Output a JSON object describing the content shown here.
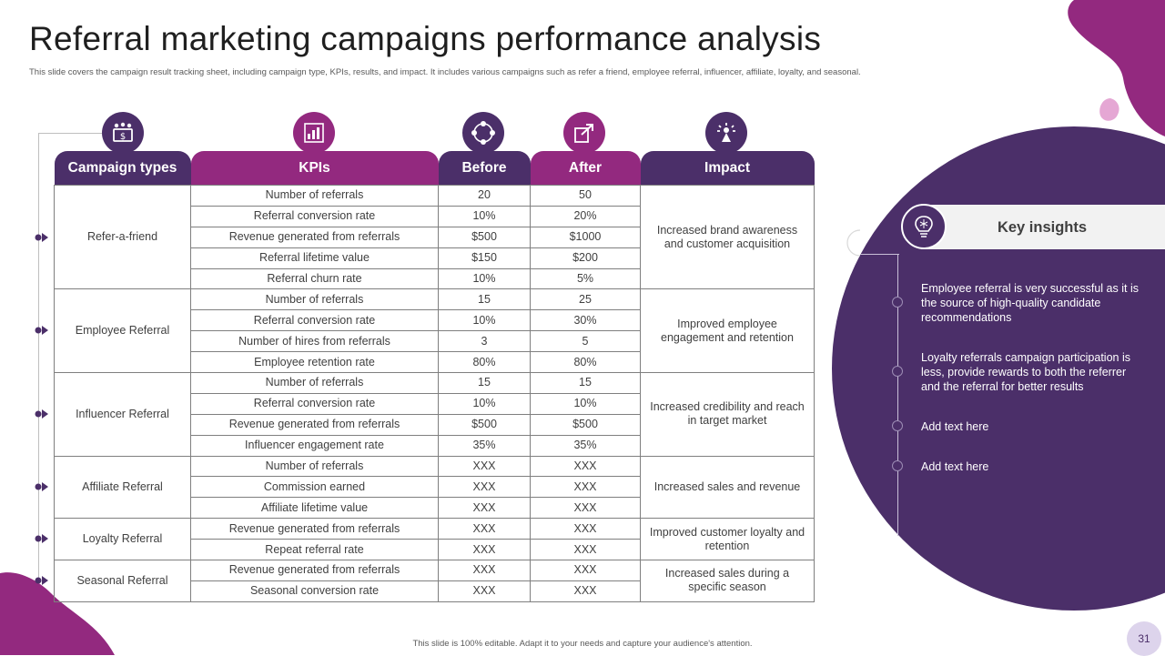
{
  "title": "Referral marketing campaigns performance analysis",
  "subtitle": "This slide covers the campaign result tracking sheet, including campaign type, KPIs,  results, and impact.  It includes various campaigns such as refer a friend, employee referral, influencer, affiliate, loyalty, and seasonal.",
  "table": {
    "headers": {
      "campaign_types": "Campaign types",
      "kpis": "KPIs",
      "before": "Before",
      "after": "After",
      "impact": "Impact"
    },
    "groups": [
      {
        "campaign": "Refer-a-friend",
        "impact": "Increased brand awareness and customer acquisition",
        "rows": [
          {
            "kpi": "Number of referrals",
            "before": "20",
            "after": "50"
          },
          {
            "kpi": "Referral conversion rate",
            "before": "10%",
            "after": "20%"
          },
          {
            "kpi": "Revenue generated from referrals",
            "before": "$500",
            "after": "$1000"
          },
          {
            "kpi": "Referral lifetime value",
            "before": "$150",
            "after": "$200"
          },
          {
            "kpi": "Referral churn rate",
            "before": "10%",
            "after": "5%"
          }
        ]
      },
      {
        "campaign": "Employee Referral",
        "impact": "Improved employee engagement and retention",
        "rows": [
          {
            "kpi": "Number of referrals",
            "before": "15",
            "after": "25"
          },
          {
            "kpi": "Referral conversion rate",
            "before": "10%",
            "after": "30%"
          },
          {
            "kpi": "Number of hires from referrals",
            "before": "3",
            "after": "5"
          },
          {
            "kpi": "Employee retention rate",
            "before": "80%",
            "after": "80%"
          }
        ]
      },
      {
        "campaign": "Influencer Referral",
        "impact": "Increased credibility and reach in target market",
        "rows": [
          {
            "kpi": "Number of referrals",
            "before": "15",
            "after": "15"
          },
          {
            "kpi": "Referral conversion rate",
            "before": "10%",
            "after": "10%"
          },
          {
            "kpi": "Revenue generated from referrals",
            "before": "$500",
            "after": "$500"
          },
          {
            "kpi": "Influencer engagement rate",
            "before": "35%",
            "after": "35%"
          }
        ]
      },
      {
        "campaign": "Affiliate Referral",
        "impact": "Increased sales and revenue",
        "rows": [
          {
            "kpi": "Number of referrals",
            "before": "XXX",
            "after": "XXX"
          },
          {
            "kpi": "Commission earned",
            "before": "XXX",
            "after": "XXX"
          },
          {
            "kpi": "Affiliate lifetime value",
            "before": "XXX",
            "after": "XXX"
          }
        ]
      },
      {
        "campaign": "Loyalty Referral",
        "impact": "Improved customer loyalty and retention",
        "rows": [
          {
            "kpi": "Revenue generated from referrals",
            "before": "XXX",
            "after": "XXX"
          },
          {
            "kpi": "Repeat referral rate",
            "before": "XXX",
            "after": "XXX"
          }
        ]
      },
      {
        "campaign": "Seasonal Referral",
        "impact": "Increased sales during a specific season",
        "rows": [
          {
            "kpi": "Revenue generated from referrals",
            "before": "XXX",
            "after": "XXX"
          },
          {
            "kpi": "Seasonal conversion rate",
            "before": "XXX",
            "after": "XXX"
          }
        ]
      }
    ]
  },
  "insights": {
    "title": "Key insights",
    "items": [
      "Employee referral is very successful as it is the source of high-quality candidate recommendations",
      "Loyalty referrals campaign participation is less, provide rewards to both the referrer and the referral for better results",
      "Add text here",
      "Add text here"
    ]
  },
  "footer": "This slide is 100% editable.  Adapt it to your needs and capture your audience's attention.",
  "page_number": "31",
  "colors": {
    "dark_purple": "#4b2f69",
    "magenta": "#93297f",
    "pink": "#e5a7d4",
    "light_gray": "#f2f2f2"
  }
}
